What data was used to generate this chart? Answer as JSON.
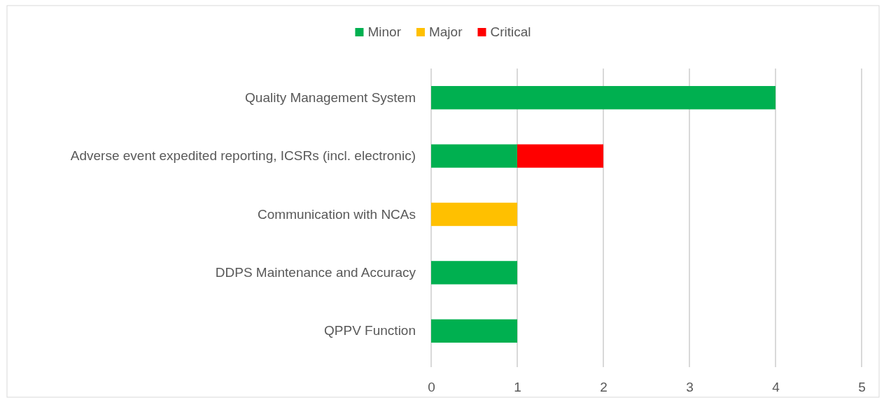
{
  "chart_data": {
    "type": "bar",
    "orientation": "horizontal",
    "stacked": true,
    "categories": [
      "Quality Management System",
      "Adverse event expedited reporting, ICSRs (incl. electronic)",
      "Communication with NCAs",
      "DDPS Maintenance and Accuracy",
      "QPPV Function"
    ],
    "series": [
      {
        "name": "Minor",
        "color": "#00b050",
        "values": [
          4,
          1,
          0,
          1,
          1
        ]
      },
      {
        "name": "Major",
        "color": "#ffc000",
        "values": [
          0,
          0,
          1,
          0,
          0
        ]
      },
      {
        "name": "Critical",
        "color": "#ff0000",
        "values": [
          0,
          1,
          0,
          0,
          0
        ]
      }
    ],
    "xlim": [
      0,
      5
    ],
    "xticks": [
      0,
      1,
      2,
      3,
      4,
      5
    ],
    "grid": "x",
    "legend": "top"
  }
}
